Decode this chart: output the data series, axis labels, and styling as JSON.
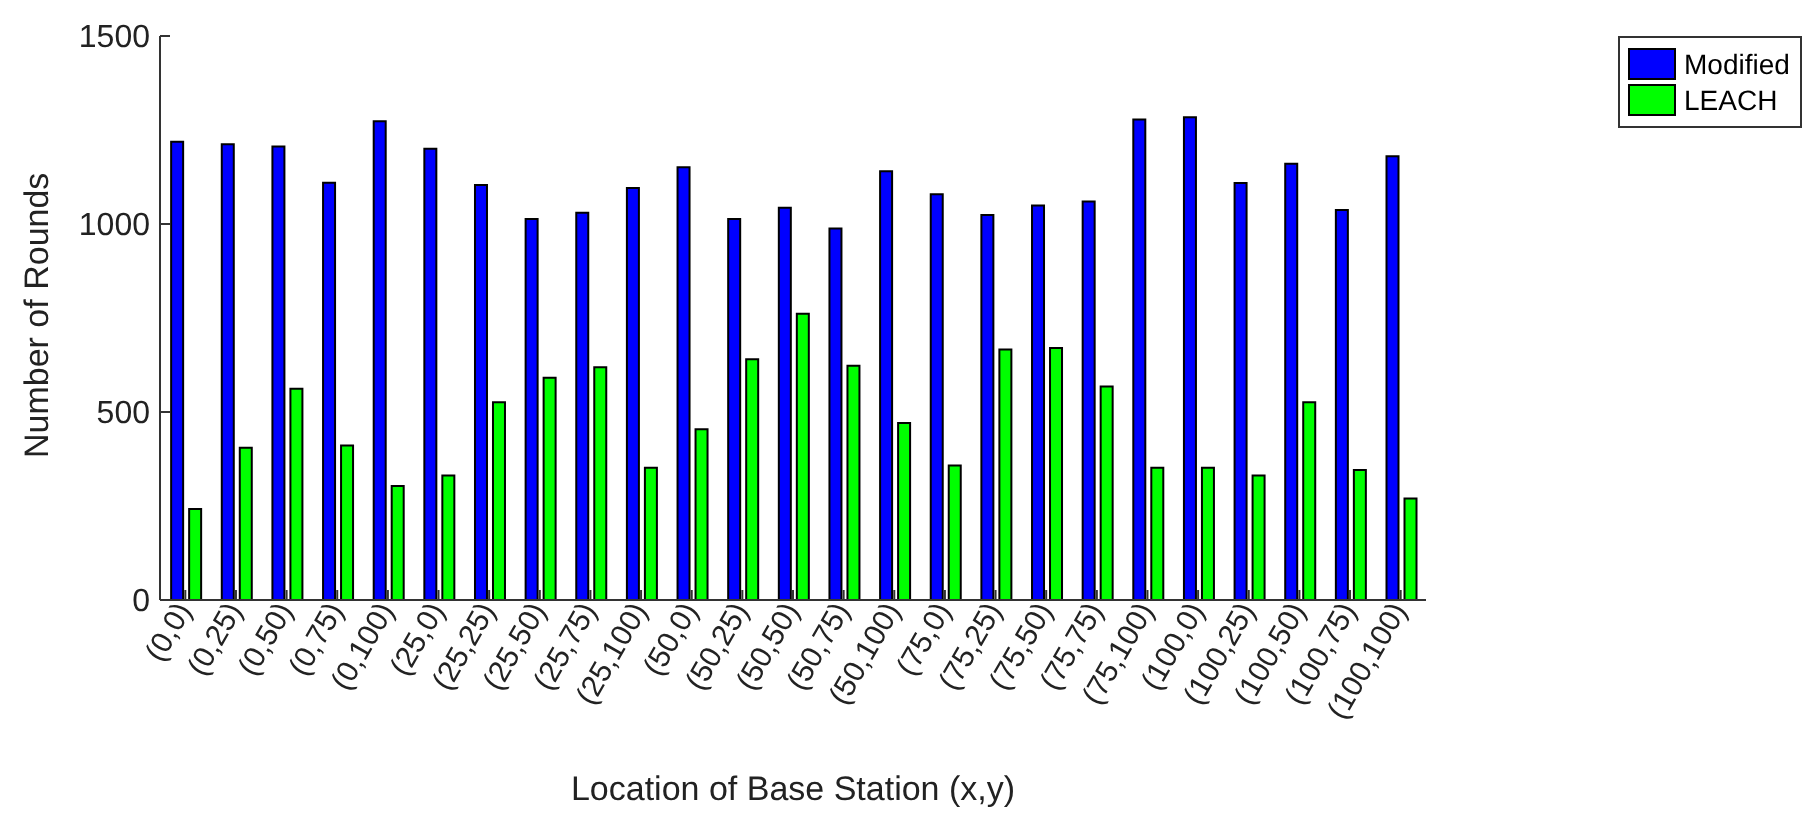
{
  "chart_data": {
    "type": "bar",
    "xlabel": "Location of Base Station (x,y)",
    "ylabel": "Number of Rounds",
    "categories": [
      "(0,0)",
      "(0,25)",
      "(0,50)",
      "(0,75)",
      "(0,100)",
      "(25,0)",
      "(25,25)",
      "(25,50)",
      "(25,75)",
      "(25,100)",
      "(50,0)",
      "(50,25)",
      "(50,50)",
      "(50,75)",
      "(50,100)",
      "(75,0)",
      "(75,25)",
      "(75,50)",
      "(75,75)",
      "(75,100)",
      "(100,0)",
      "(100,25)",
      "(100,50)",
      "(100,75)",
      "(100,100)"
    ],
    "series": [
      {
        "name": "Modified",
        "color": "#0000ff",
        "values": [
          1219,
          1212,
          1206,
          1110,
          1273,
          1200,
          1104,
          1013,
          1030,
          1096,
          1151,
          1013,
          1043,
          988,
          1140,
          1079,
          1024,
          1049,
          1060,
          1278,
          1284,
          1109,
          1160,
          1037,
          1180
        ]
      },
      {
        "name": "LEACH",
        "color": "#00ff00",
        "values": [
          242,
          405,
          562,
          411,
          303,
          331,
          526,
          591,
          619,
          352,
          454,
          640,
          761,
          623,
          471,
          358,
          666,
          670,
          568,
          352,
          352,
          331,
          526,
          346,
          270
        ]
      }
    ],
    "ylim": [
      0,
      1500
    ],
    "yticks": [
      0,
      500,
      1000,
      1500
    ],
    "grid": false,
    "legend": "top right"
  }
}
